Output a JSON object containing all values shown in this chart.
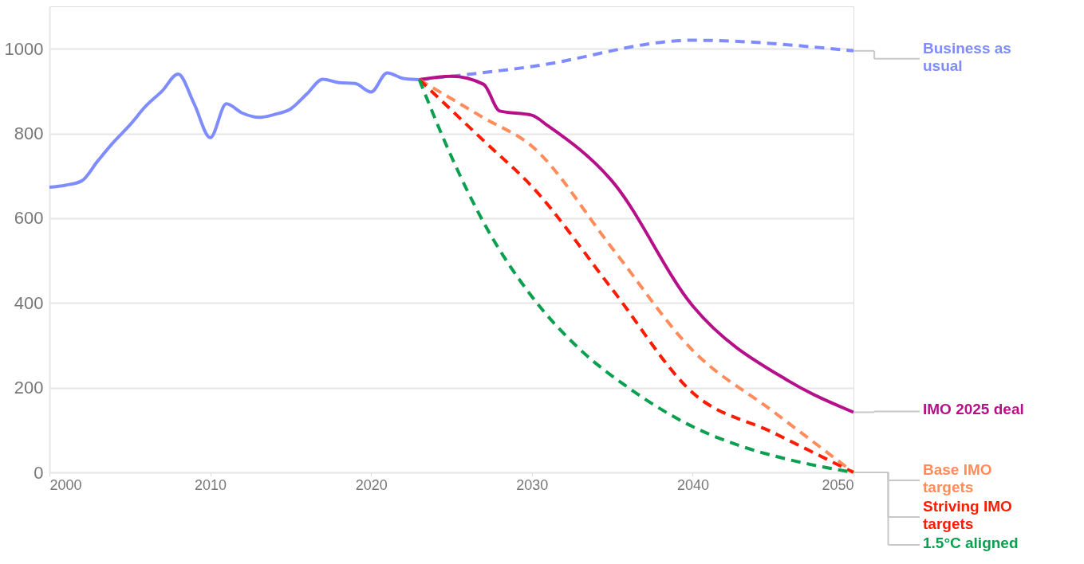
{
  "chart_data": {
    "type": "line",
    "xlim": [
      2000,
      2050
    ],
    "xticks": [
      2000,
      2010,
      2020,
      2030,
      2040,
      2050
    ],
    "ylim": [
      0,
      1100
    ],
    "yticks": [
      0,
      200,
      400,
      600,
      800,
      1000
    ],
    "grid": "y",
    "marker": "none",
    "series": [
      {
        "color": "#7f8cff",
        "line_style": "solid",
        "x": [
          2000,
          2001,
          2002,
          2003,
          2004,
          2005,
          2006,
          2007,
          2008,
          2009,
          2010,
          2011,
          2012,
          2013,
          2014,
          2015,
          2016,
          2017,
          2018,
          2019,
          2020,
          2021,
          2022,
          2023
        ],
        "values": [
          673,
          678,
          688,
          735,
          780,
          820,
          865,
          900,
          940,
          870,
          790,
          870,
          848,
          838,
          845,
          858,
          893,
          928,
          920,
          918,
          898,
          943,
          930,
          927
        ]
      },
      {
        "name": "Business as usual",
        "color": "#7f8cff",
        "line_style": "dashed",
        "x": [
          2023,
          2030,
          2040,
          2050
        ],
        "values": [
          927,
          958,
          1020,
          995
        ]
      },
      {
        "name": "IMO 2025 deal",
        "color": "#b5108a",
        "line_style": "solid",
        "x": [
          2023,
          2025,
          2027,
          2028,
          2030,
          2031,
          2035,
          2040,
          2046,
          2050
        ],
        "values": [
          927,
          935,
          916,
          853,
          843,
          818,
          687,
          393,
          215,
          142
        ]
      },
      {
        "name": "Base IMO targets",
        "color": "#ff8c5a",
        "line_style": "dashed",
        "x": [
          2023,
          2027,
          2030,
          2035,
          2040,
          2045,
          2050
        ],
        "values": [
          927,
          837,
          770,
          529,
          288,
          144,
          0
        ]
      },
      {
        "name": "Striving IMO targets",
        "color": "#ff1a00",
        "line_style": "dashed",
        "x": [
          2023,
          2027,
          2030,
          2035,
          2040,
          2045,
          2050
        ],
        "values": [
          927,
          783,
          675,
          432,
          188,
          94,
          0
        ]
      },
      {
        "name": "1.5°C aligned",
        "color": "#0aa04f",
        "line_style": "dashed",
        "x": [
          2023,
          2025,
          2027,
          2030,
          2033,
          2036,
          2040,
          2043,
          2046,
          2050
        ],
        "values": [
          927,
          745,
          590,
          415,
          290,
          200,
          108,
          62,
          30,
          0
        ]
      }
    ]
  }
}
